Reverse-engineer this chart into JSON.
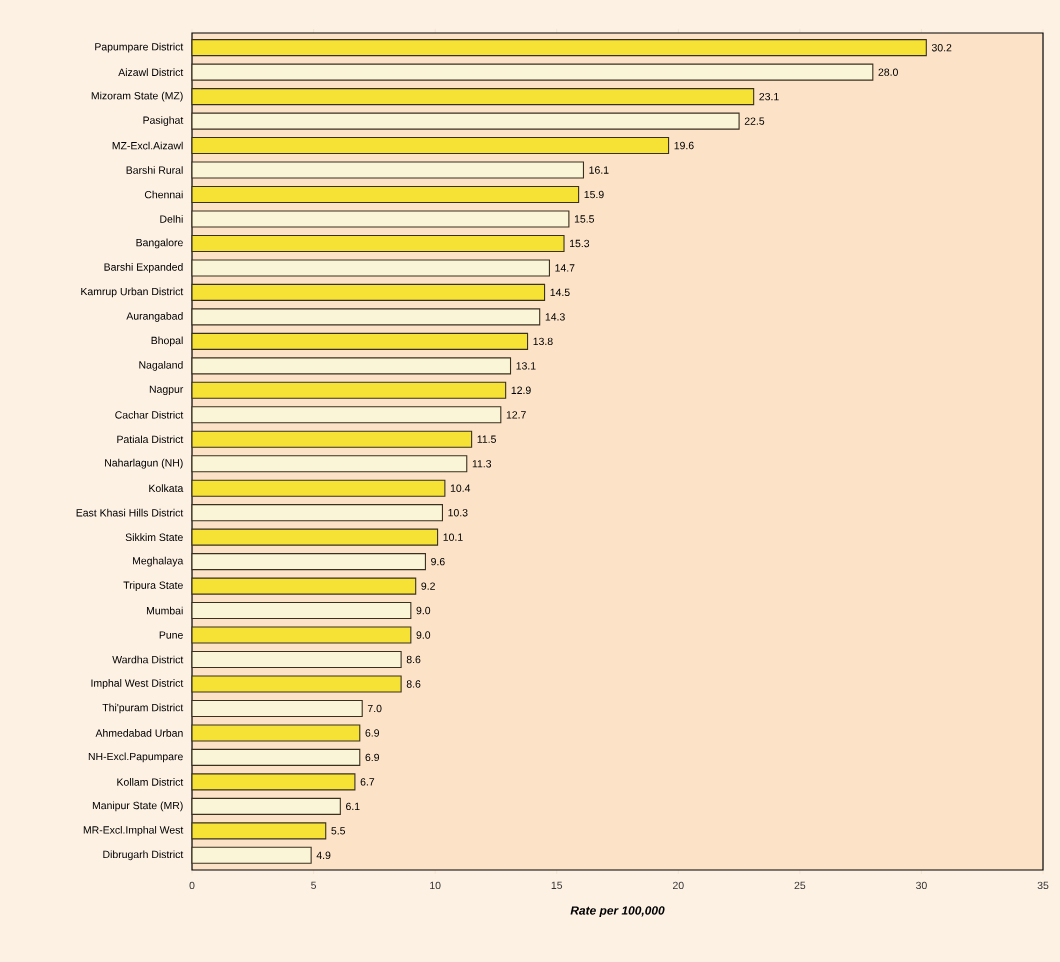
{
  "chart_data": {
    "type": "bar",
    "orientation": "horizontal",
    "xlabel": "Rate per 100,000",
    "categories": [
      "Papumpare District",
      "Aizawl District",
      "Mizoram State (MZ)",
      "Pasighat",
      "MZ-Excl.Aizawl",
      "Barshi Rural",
      "Chennai",
      "Delhi",
      "Bangalore",
      "Barshi Expanded",
      "Kamrup Urban District",
      "Aurangabad",
      "Bhopal",
      "Nagaland",
      "Nagpur",
      "Cachar District",
      "Patiala District",
      "Naharlagun (NH)",
      "Kolkata",
      "East Khasi Hills District",
      "Sikkim State",
      "Meghalaya",
      "Tripura State",
      "Mumbai",
      "Pune",
      "Wardha District",
      "Imphal West District",
      "Thi'puram District",
      "Ahmedabad Urban",
      "NH-Excl.Papumpare",
      "Kollam District",
      "Manipur State (MR)",
      "MR-Excl.Imphal West",
      "Dibrugarh District"
    ],
    "values": [
      30.2,
      28.0,
      23.1,
      22.5,
      19.6,
      16.1,
      15.9,
      15.5,
      15.3,
      14.7,
      14.5,
      14.3,
      13.8,
      13.1,
      12.9,
      12.7,
      11.5,
      11.3,
      10.4,
      10.3,
      10.1,
      9.6,
      9.2,
      9.0,
      9.0,
      8.6,
      8.6,
      7.0,
      6.9,
      6.9,
      6.7,
      6.1,
      5.5,
      4.9
    ],
    "value_labels": [
      "30.2",
      "28.0",
      "23.1",
      "22.5",
      "19.6",
      "16.1",
      "15.9",
      "15.5",
      "15.3",
      "14.7",
      "14.5",
      "14.3",
      "13.8",
      "13.1",
      "12.9",
      "12.7",
      "11.5",
      "11.3",
      "10.4",
      "10.3",
      "10.1",
      "9.6",
      "9.2",
      "9.0",
      "9.0",
      "8.6",
      "8.6",
      "7.0",
      "6.9",
      "6.9",
      "6.7",
      "6.1",
      "5.5",
      "4.9"
    ],
    "colors": [
      "#f5e234",
      "#faf5d6",
      "#f5e234",
      "#faf5d6",
      "#f5e234",
      "#faf5d6",
      "#f5e234",
      "#faf5d6",
      "#f5e234",
      "#faf5d6",
      "#f5e234",
      "#faf5d6",
      "#f5e234",
      "#faf5d6",
      "#f5e234",
      "#faf5d6",
      "#f5e234",
      "#faf5d6",
      "#f5e234",
      "#faf5d6",
      "#f5e234",
      "#faf5d6",
      "#f5e234",
      "#faf5d6",
      "#f5e234",
      "#faf5d6",
      "#f5e234",
      "#faf5d6",
      "#f5e234",
      "#faf5d6",
      "#f5e234",
      "#faf5d6",
      "#f5e234",
      "#faf5d6"
    ],
    "xlim": [
      0,
      35
    ],
    "xticks": [
      0,
      5,
      10,
      15,
      20,
      25,
      30,
      35
    ]
  }
}
